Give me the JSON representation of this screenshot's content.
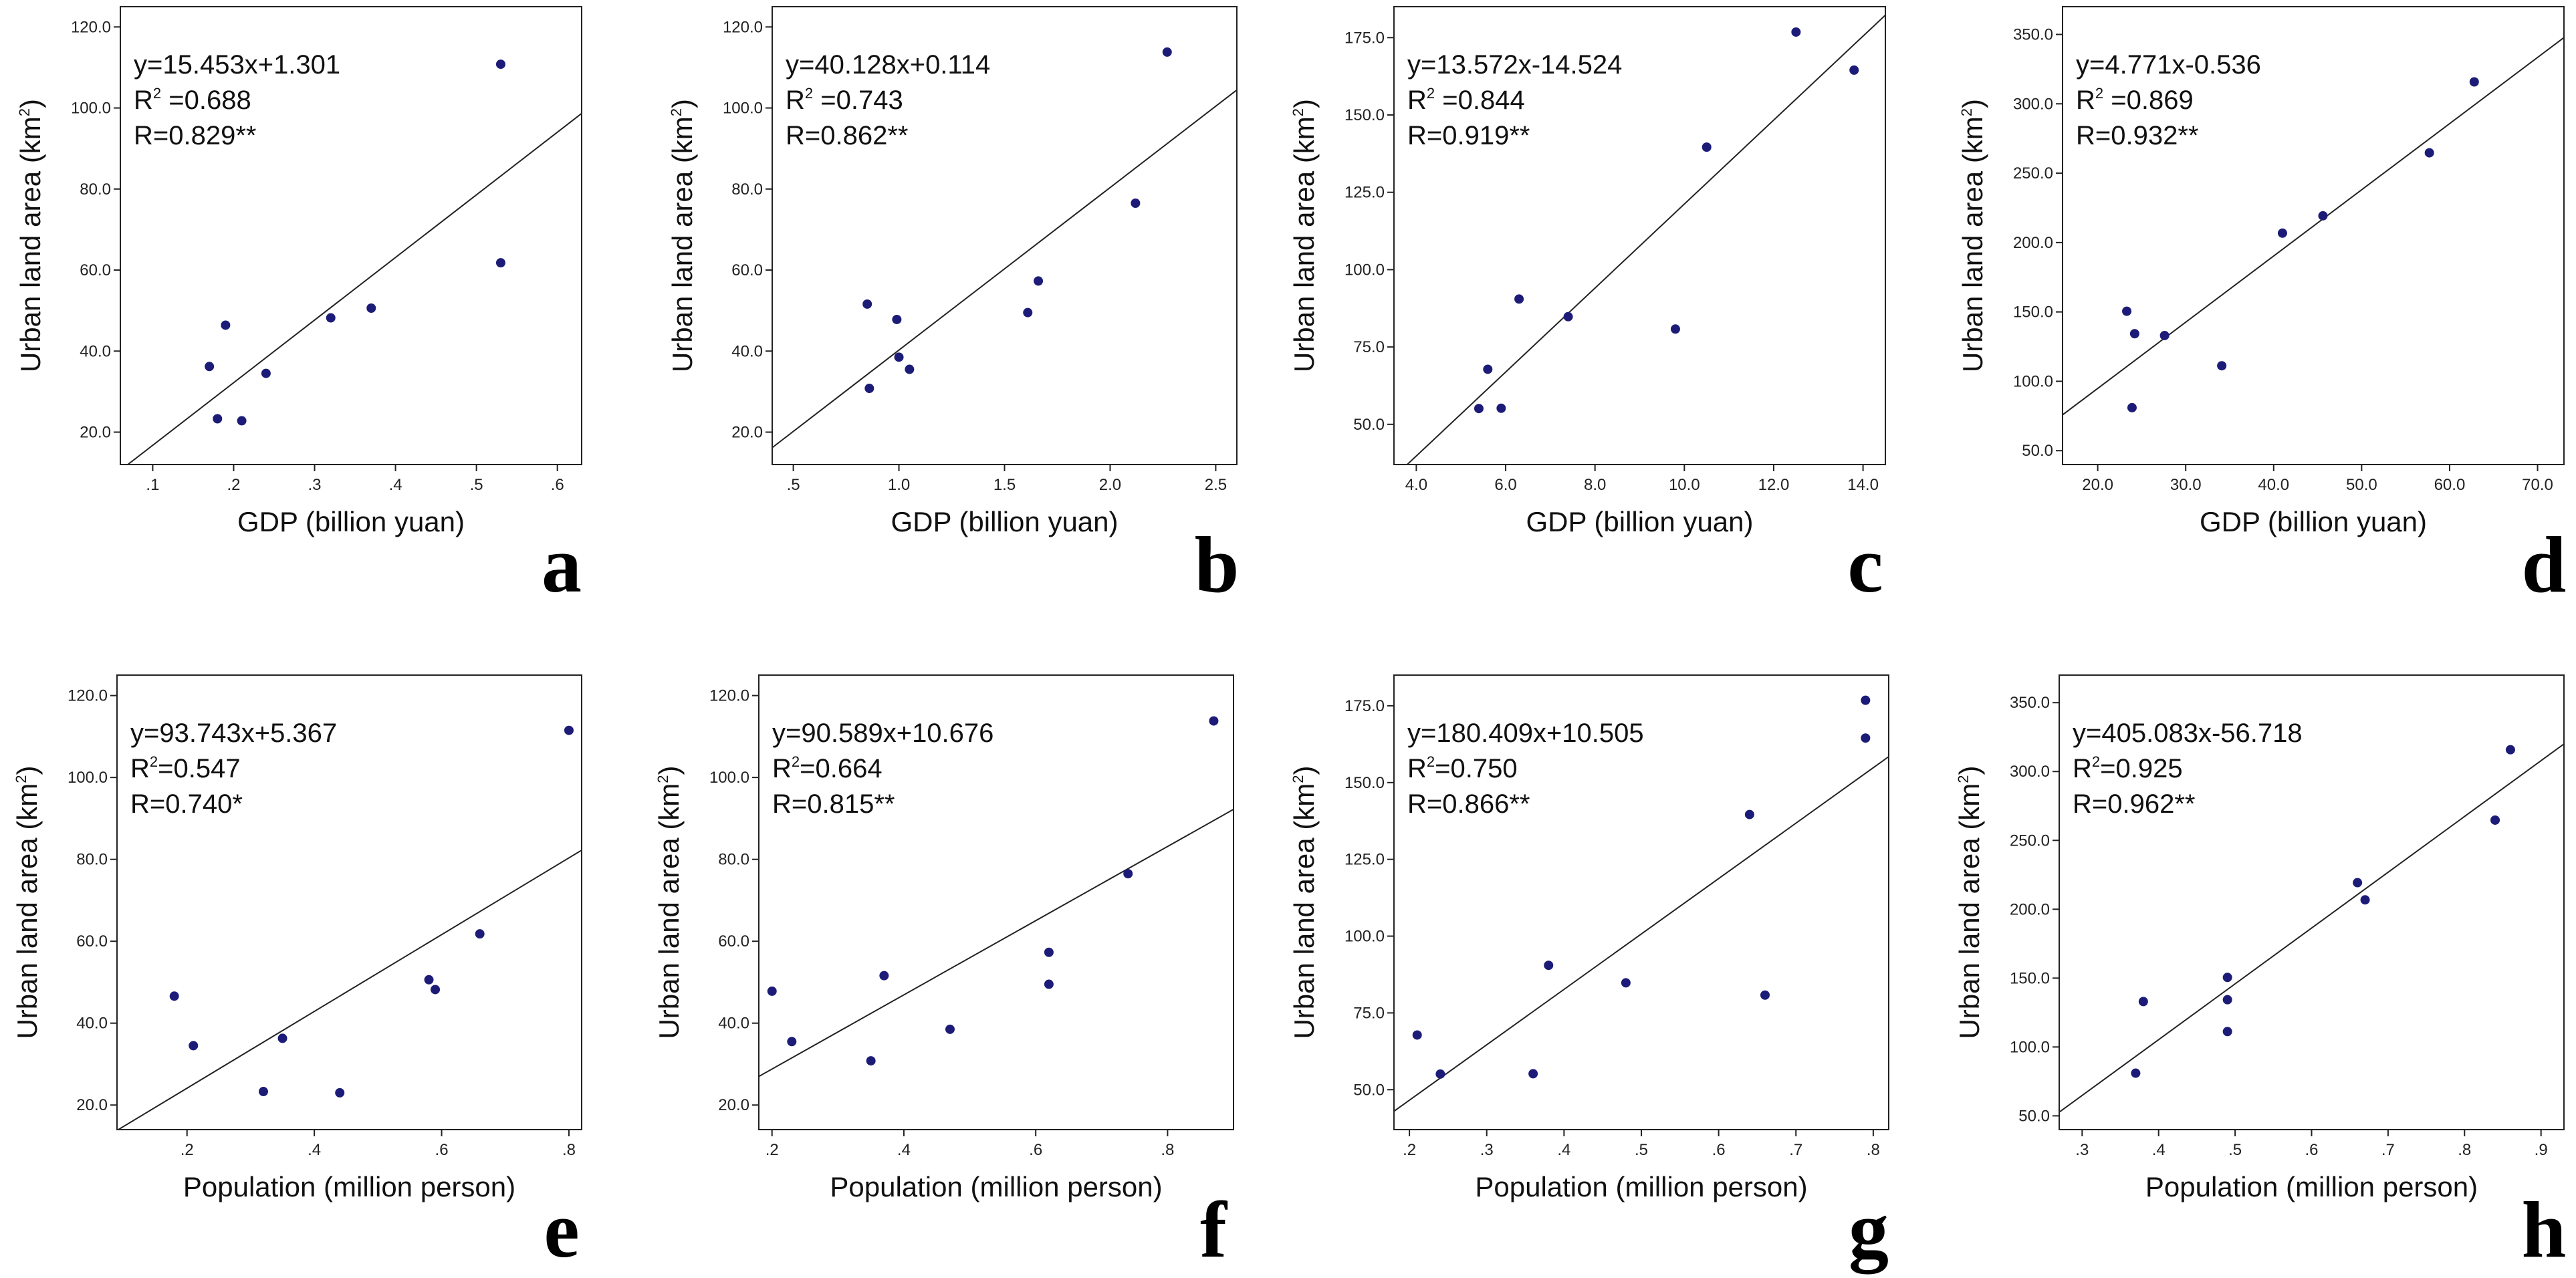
{
  "chart_data": [
    {
      "type": "scatter",
      "letter": "a",
      "xlabel": "GDP (billion yuan)",
      "ylabel": "Urban land area (km",
      "ylabel_sup": "2",
      "ylabel_close": ")",
      "equation": "y=15.453x+1.301",
      "r2_prefix": "R",
      "r2_sup": "2",
      "r2_value": " =0.688",
      "r_text": "R=0.829**",
      "xlim": [
        0.06,
        0.63
      ],
      "ylim": [
        12,
        125
      ],
      "xticks": [
        0.1,
        0.2,
        0.3,
        0.4,
        0.5,
        0.6
      ],
      "xtick_labels": [
        ".1",
        ".2",
        ".3",
        ".4",
        ".5",
        ".6"
      ],
      "yticks": [
        20,
        40,
        60,
        80,
        100,
        120
      ],
      "ytick_labels": [
        "20.0",
        "40.0",
        "60.0",
        "80.0",
        "100.0",
        "120.0"
      ],
      "fit": {
        "slope": 15.453,
        "intercept": 1.301,
        "xscale": 10
      },
      "points": [
        [
          0.17,
          36.2
        ],
        [
          0.18,
          23.3
        ],
        [
          0.19,
          46.4
        ],
        [
          0.21,
          22.8
        ],
        [
          0.24,
          34.5
        ],
        [
          0.32,
          48.2
        ],
        [
          0.37,
          50.6
        ],
        [
          0.53,
          110.8
        ],
        [
          0.53,
          61.8
        ]
      ]
    },
    {
      "type": "scatter",
      "letter": "b",
      "xlabel": "GDP (billion yuan)",
      "ylabel": "Urban land area (km",
      "ylabel_sup": "2",
      "ylabel_close": ")",
      "equation": "y=40.128x+0.114",
      "r2_prefix": "R",
      "r2_sup": "2",
      "r2_value": " =0.743",
      "r_text": "R=0.862**",
      "xlim": [
        0.4,
        2.6
      ],
      "ylim": [
        12,
        125
      ],
      "xticks": [
        0.5,
        1.0,
        1.5,
        2.0,
        2.5
      ],
      "xtick_labels": [
        ".5",
        "1.0",
        "1.5",
        "2.0",
        "2.5"
      ],
      "yticks": [
        20,
        40,
        60,
        80,
        100,
        120
      ],
      "ytick_labels": [
        "20.0",
        "40.0",
        "60.0",
        "80.0",
        "100.0",
        "120.0"
      ],
      "fit": {
        "slope": 40.128,
        "intercept": 0.114,
        "xscale": 1
      },
      "points": [
        [
          0.85,
          51.6
        ],
        [
          0.86,
          30.8
        ],
        [
          0.99,
          47.8
        ],
        [
          1.0,
          38.5
        ],
        [
          1.05,
          35.5
        ],
        [
          1.61,
          49.5
        ],
        [
          1.66,
          57.3
        ],
        [
          2.12,
          76.5
        ],
        [
          2.27,
          113.8
        ]
      ]
    },
    {
      "type": "scatter",
      "letter": "c",
      "xlabel": "GDP (billion yuan)",
      "ylabel": "Urban land area (km",
      "ylabel_sup": "2",
      "ylabel_close": ")",
      "equation": "y=13.572x-14.524",
      "r2_prefix": "R",
      "r2_sup": "2",
      "r2_value": " =0.844",
      "r_text": "R=0.919**",
      "xlim": [
        3.5,
        14.5
      ],
      "ylim": [
        37,
        185
      ],
      "xticks": [
        4,
        6,
        8,
        10,
        12,
        14
      ],
      "xtick_labels": [
        "4.0",
        "6.0",
        "8.0",
        "10.0",
        "12.0",
        "14.0"
      ],
      "yticks": [
        50,
        75,
        100,
        125,
        150,
        175
      ],
      "ytick_labels": [
        "50.0",
        "75.0",
        "100.0",
        "125.0",
        "150.0",
        "175.0"
      ],
      "fit": {
        "slope": 13.572,
        "intercept": -14.524,
        "xscale": 1
      },
      "points": [
        [
          5.4,
          55.1
        ],
        [
          5.6,
          67.8
        ],
        [
          5.9,
          55.2
        ],
        [
          6.3,
          90.5
        ],
        [
          7.4,
          84.8
        ],
        [
          9.8,
          80.8
        ],
        [
          10.5,
          139.6
        ],
        [
          12.5,
          176.8
        ],
        [
          13.8,
          164.5
        ]
      ]
    },
    {
      "type": "scatter",
      "letter": "d",
      "xlabel": "GDP (billion yuan)",
      "ylabel": "Urban land area (km",
      "ylabel_sup": "2",
      "ylabel_close": ")",
      "equation": "y=4.771x-0.536",
      "r2_prefix": "R",
      "r2_sup": "2",
      "r2_value": " =0.869",
      "r_text": "R=0.932**",
      "xlim": [
        16,
        73
      ],
      "ylim": [
        40,
        370
      ],
      "xticks": [
        20,
        30,
        40,
        50,
        60,
        70
      ],
      "xtick_labels": [
        "20.0",
        "30.0",
        "40.0",
        "50.0",
        "60.0",
        "70.0"
      ],
      "yticks": [
        50,
        100,
        150,
        200,
        250,
        300,
        350
      ],
      "ytick_labels": [
        "50.0",
        "100.0",
        "150.0",
        "200.0",
        "250.0",
        "300.0",
        "350.0"
      ],
      "fit": {
        "slope": 4.771,
        "intercept": -0.536,
        "xscale": 1
      },
      "points": [
        [
          23.3,
          150.5
        ],
        [
          23.9,
          81.0
        ],
        [
          24.2,
          134.3
        ],
        [
          27.6,
          133.0
        ],
        [
          34.1,
          111.2
        ],
        [
          41.0,
          206.8
        ],
        [
          45.6,
          219.3
        ],
        [
          57.7,
          264.7
        ],
        [
          62.8,
          315.8
        ]
      ]
    },
    {
      "type": "scatter",
      "letter": "e",
      "xlabel": "Population (million person)",
      "ylabel": "Urban land area (km",
      "ylabel_sup": "2",
      "ylabel_close": ")",
      "equation": "y=93.743x+5.367",
      "r2_prefix": "R",
      "r2_sup": "2",
      "r2_value": "=0.547",
      "r_text": "R=0.740*",
      "xlim": [
        0.09,
        0.82
      ],
      "ylim": [
        14,
        125
      ],
      "xticks": [
        0.2,
        0.4,
        0.6,
        0.8
      ],
      "xtick_labels": [
        ".2",
        ".4",
        ".6",
        ".8"
      ],
      "yticks": [
        20,
        40,
        60,
        80,
        100,
        120
      ],
      "ytick_labels": [
        "20.0",
        "40.0",
        "60.0",
        "80.0",
        "100.0",
        "120.0"
      ],
      "fit": {
        "slope": 93.743,
        "intercept": 5.367,
        "xscale": 1
      },
      "points": [
        [
          0.18,
          46.6
        ],
        [
          0.21,
          34.5
        ],
        [
          0.32,
          23.3
        ],
        [
          0.35,
          36.3
        ],
        [
          0.44,
          23.0
        ],
        [
          0.58,
          50.6
        ],
        [
          0.59,
          48.2
        ],
        [
          0.66,
          61.8
        ],
        [
          0.8,
          111.5
        ]
      ]
    },
    {
      "type": "scatter",
      "letter": "f",
      "xlabel": "Population (million person)",
      "ylabel": "Urban land area (km",
      "ylabel_sup": "2",
      "ylabel_close": ")",
      "equation": "y=90.589x+10.676",
      "r2_prefix": "R",
      "r2_sup": "2",
      "r2_value": "=0.664",
      "r_text": "R=0.815**",
      "xlim": [
        0.18,
        0.9
      ],
      "ylim": [
        14,
        125
      ],
      "xticks": [
        0.2,
        0.4,
        0.6,
        0.8
      ],
      "xtick_labels": [
        ".2",
        ".4",
        ".6",
        ".8"
      ],
      "yticks": [
        20,
        40,
        60,
        80,
        100,
        120
      ],
      "ytick_labels": [
        "20.0",
        "40.0",
        "60.0",
        "80.0",
        "100.0",
        "120.0"
      ],
      "fit": {
        "slope": 90.589,
        "intercept": 10.676,
        "xscale": 1
      },
      "points": [
        [
          0.2,
          47.8
        ],
        [
          0.23,
          35.5
        ],
        [
          0.35,
          30.8
        ],
        [
          0.37,
          51.6
        ],
        [
          0.47,
          38.5
        ],
        [
          0.62,
          57.3
        ],
        [
          0.62,
          49.5
        ],
        [
          0.74,
          76.5
        ],
        [
          0.87,
          113.8
        ]
      ]
    },
    {
      "type": "scatter",
      "letter": "g",
      "xlabel": "Population (million person)",
      "ylabel": "Urban land area (km",
      "ylabel_sup": "2",
      "ylabel_close": ")",
      "equation": "y=180.409x+10.505",
      "r2_prefix": "R",
      "r2_sup": "2",
      "r2_value": "=0.750",
      "r_text": "R=0.866**",
      "xlim": [
        0.18,
        0.82
      ],
      "ylim": [
        37,
        185
      ],
      "xticks": [
        0.2,
        0.3,
        0.4,
        0.5,
        0.6,
        0.7,
        0.8
      ],
      "xtick_labels": [
        ".2",
        ".3",
        ".4",
        ".5",
        ".6",
        ".7",
        ".8"
      ],
      "yticks": [
        50,
        75,
        100,
        125,
        150,
        175
      ],
      "ytick_labels": [
        "50.0",
        "75.0",
        "100.0",
        "125.0",
        "150.0",
        "175.0"
      ],
      "fit": {
        "slope": 180.409,
        "intercept": 10.505,
        "xscale": 1
      },
      "points": [
        [
          0.21,
          67.8
        ],
        [
          0.24,
          55.1
        ],
        [
          0.36,
          55.2
        ],
        [
          0.38,
          90.5
        ],
        [
          0.48,
          84.8
        ],
        [
          0.64,
          139.6
        ],
        [
          0.66,
          80.8
        ],
        [
          0.79,
          176.8
        ],
        [
          0.79,
          164.5
        ]
      ]
    },
    {
      "type": "scatter",
      "letter": "h",
      "xlabel": "Population (million person)",
      "ylabel": "Urban land area (km",
      "ylabel_sup": "2",
      "ylabel_close": ")",
      "equation": "y=405.083x-56.718",
      "r2_prefix": "R",
      "r2_sup": "2",
      "r2_value": "=0.925",
      "r_text": "R=0.962**",
      "xlim": [
        0.27,
        0.93
      ],
      "ylim": [
        40,
        370
      ],
      "xticks": [
        0.3,
        0.4,
        0.5,
        0.6,
        0.7,
        0.8,
        0.9
      ],
      "xtick_labels": [
        ".3",
        ".4",
        ".5",
        ".6",
        ".7",
        ".8",
        ".9"
      ],
      "yticks": [
        50,
        100,
        150,
        200,
        250,
        300,
        350
      ],
      "ytick_labels": [
        "50.0",
        "100.0",
        "150.0",
        "200.0",
        "250.0",
        "300.0",
        "350.0"
      ],
      "fit": {
        "slope": 405.083,
        "intercept": -56.718,
        "xscale": 1
      },
      "points": [
        [
          0.37,
          81.0
        ],
        [
          0.38,
          133.0
        ],
        [
          0.49,
          150.5
        ],
        [
          0.49,
          134.3
        ],
        [
          0.49,
          111.2
        ],
        [
          0.66,
          219.3
        ],
        [
          0.67,
          206.8
        ],
        [
          0.84,
          264.7
        ],
        [
          0.86,
          315.8
        ]
      ]
    }
  ]
}
